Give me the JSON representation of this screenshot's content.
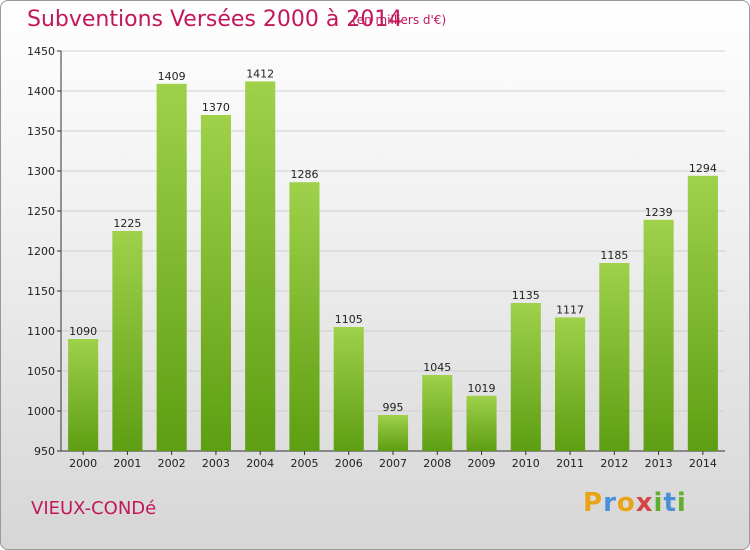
{
  "title": "Subventions Versées 2000 à 2014",
  "unit_note": "(en milliers d'€)",
  "commune": "VIEUX-CONDé",
  "logo": {
    "text": "Proxiti",
    "letters": [
      "P",
      "r",
      "o",
      "x",
      "i",
      "t",
      "i"
    ],
    "colors": [
      "#e8a317",
      "#4a90d9",
      "#e8a317",
      "#d64545",
      "#5fae2e",
      "#4a90d9",
      "#5fae2e"
    ]
  },
  "colors": {
    "title": "#c2185b",
    "bar_top": "#9fd14b",
    "bar_bottom": "#5e9e12",
    "grid": "#cfcfcf"
  },
  "chart_data": {
    "type": "bar",
    "title": "Subventions Versées 2000 à 2014",
    "xlabel": "",
    "ylabel": "",
    "categories": [
      "2000",
      "2001",
      "2002",
      "2003",
      "2004",
      "2005",
      "2006",
      "2007",
      "2008",
      "2009",
      "2010",
      "2011",
      "2012",
      "2013",
      "2014"
    ],
    "values": [
      1090,
      1225,
      1409,
      1370,
      1412,
      1286,
      1105,
      995,
      1045,
      1019,
      1135,
      1117,
      1185,
      1239,
      1294
    ],
    "ylim": [
      950,
      1450
    ],
    "yticks": [
      950,
      1000,
      1050,
      1100,
      1150,
      1200,
      1250,
      1300,
      1350,
      1400,
      1450
    ],
    "grid": true,
    "legend": "none"
  }
}
